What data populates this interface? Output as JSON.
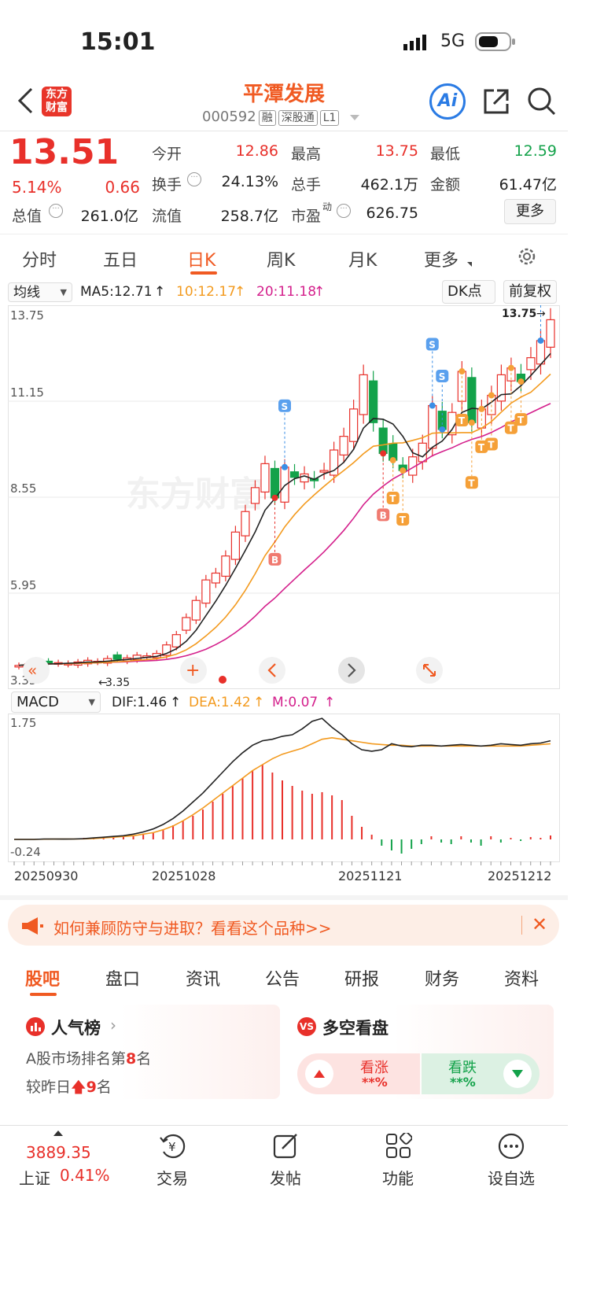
{
  "status": {
    "time": "15:01",
    "network": "5G"
  },
  "header": {
    "brand_line1": "东方",
    "brand_line2": "财富",
    "title": "平潭发展",
    "code": "000592",
    "tags": [
      "融",
      "深股通",
      "L1"
    ],
    "ai": "Ai"
  },
  "quote": {
    "price": "13.51",
    "pct": "5.14%",
    "chg": "0.66",
    "row1": [
      {
        "l": "今开",
        "v": "12.86"
      },
      {
        "l": "最高",
        "v": "13.75"
      },
      {
        "l": "最低",
        "v": "12.59"
      }
    ],
    "row2": [
      {
        "l": "换手",
        "v": "24.13%"
      },
      {
        "l": "总手",
        "v": "462.1万"
      },
      {
        "l": "金额",
        "v": "61.47亿"
      }
    ],
    "row3": [
      {
        "l": "总值",
        "v": "261.0亿"
      },
      {
        "l": "流值",
        "v": "258.7亿"
      },
      {
        "l": "市盈",
        "sup": "动",
        "v": "626.75"
      }
    ],
    "more": "更多"
  },
  "tabs": [
    "分时",
    "五日",
    "日K",
    "周K",
    "月K",
    "更多"
  ],
  "active_tab": "日K",
  "kline": {
    "ma_select": "均线",
    "ma5": "MA5:12.71",
    "ma10": "10:12.17",
    "ma20": "20:11.18",
    "dk": "DK点",
    "fq": "前复权",
    "y_labels": [
      "13.75",
      "11.15",
      "8.55",
      "5.95"
    ],
    "low_label": "3.35",
    "low_mark": "3.35",
    "high_mark": "13.75",
    "watermark": "东方财富"
  },
  "macd": {
    "select": "MACD",
    "dif": "DIF:1.46",
    "dea": "DEA:1.42",
    "m": "M:0.07",
    "y_top": "1.75",
    "y_bottom": "-0.24",
    "dates": [
      "20250930",
      "20251028",
      "20251121",
      "20251212"
    ]
  },
  "banner": {
    "text": "如何兼顾防守与进取？看看这个品种>>"
  },
  "section_tabs": [
    "股吧",
    "盘口",
    "资讯",
    "公告",
    "研报",
    "财务",
    "资料"
  ],
  "cards": {
    "popular": {
      "title": "人气榜",
      "line1_pre": "A股市场排名第",
      "rank": "8",
      "line1_post": "名",
      "line2_pre": "较昨日",
      "change": "9",
      "line2_post": "名"
    },
    "vote": {
      "title": "多空看盘",
      "bull": "看涨",
      "bear": "看跌",
      "bull_v": "**%",
      "bear_v": "**%"
    }
  },
  "bottom": {
    "index_value": "3889.35",
    "index_name": "上证",
    "index_pct": "0.41%",
    "items": [
      "交易",
      "发帖",
      "功能",
      "设自选"
    ]
  },
  "colors": {
    "up": "#e8302a",
    "down": "#13a24a",
    "accent": "#f05a22",
    "ma5": "#222222",
    "ma10": "#f39a1e",
    "ma20": "#d4208c"
  }
}
